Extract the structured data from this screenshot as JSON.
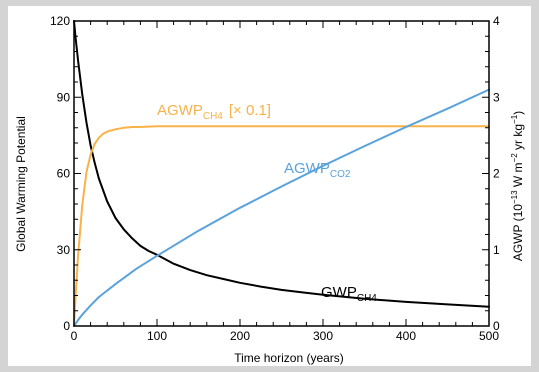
{
  "chart_data": {
    "type": "line",
    "title": "",
    "xlabel": "Time horizon (years)",
    "ylabel": "Global Warming Potential",
    "y2label": {
      "prefix": "AGWP (10",
      "exp1": "−13",
      "mid1": " W m",
      "exp2": "−2",
      "mid2": " yr kg",
      "exp3": "−1",
      "suffix": ")"
    },
    "xlim": [
      0,
      500
    ],
    "ylim": [
      0,
      120
    ],
    "y2lim": [
      0,
      4
    ],
    "x_ticks": [
      0,
      100,
      200,
      300,
      400,
      500
    ],
    "y_ticks": [
      0,
      30,
      60,
      90,
      120
    ],
    "y2_ticks": [
      0,
      1,
      2,
      3,
      4
    ],
    "grid": false,
    "series": [
      {
        "name": "GWP",
        "label_main": "GWP",
        "label_sub": "CH4",
        "label_extra": "",
        "axis": "left",
        "color": "#000000",
        "x": [
          0,
          2,
          5,
          10,
          15,
          20,
          25,
          30,
          40,
          50,
          60,
          70,
          80,
          90,
          100,
          120,
          140,
          160,
          180,
          200,
          225,
          250,
          275,
          300,
          350,
          400,
          450,
          500
        ],
        "y": [
          120,
          113,
          104,
          91,
          80,
          71,
          64,
          58,
          49,
          42.5,
          38,
          34.5,
          31.5,
          29.5,
          28,
          24.5,
          22,
          20,
          18.5,
          17,
          15.5,
          14.2,
          13.2,
          12.3,
          10.7,
          9.5,
          8.5,
          7.6
        ]
      },
      {
        "name": "AGWP",
        "label_main": "AGWP",
        "label_sub": "CH4",
        "label_extra": "[× 0.1]",
        "axis": "right",
        "color": "#f8b24a",
        "x": [
          0,
          2,
          5,
          10,
          15,
          20,
          25,
          30,
          35,
          40,
          50,
          60,
          70,
          80,
          100,
          150,
          200,
          300,
          400,
          500
        ],
        "y": [
          0,
          0.42,
          0.94,
          1.59,
          2.02,
          2.25,
          2.39,
          2.47,
          2.52,
          2.55,
          2.58,
          2.6,
          2.61,
          2.61,
          2.62,
          2.62,
          2.62,
          2.62,
          2.62,
          2.62
        ]
      },
      {
        "name": "AGWP",
        "label_main": "AGWP",
        "label_sub": "CO2",
        "label_extra": "",
        "axis": "right",
        "color": "#5aa2dc",
        "x": [
          0,
          5,
          10,
          20,
          30,
          50,
          75,
          100,
          150,
          200,
          250,
          300,
          350,
          400,
          450,
          500
        ],
        "y": [
          0,
          0.08,
          0.15,
          0.27,
          0.38,
          0.55,
          0.75,
          0.92,
          1.25,
          1.55,
          1.83,
          2.1,
          2.36,
          2.61,
          2.85,
          3.1
        ]
      }
    ]
  }
}
